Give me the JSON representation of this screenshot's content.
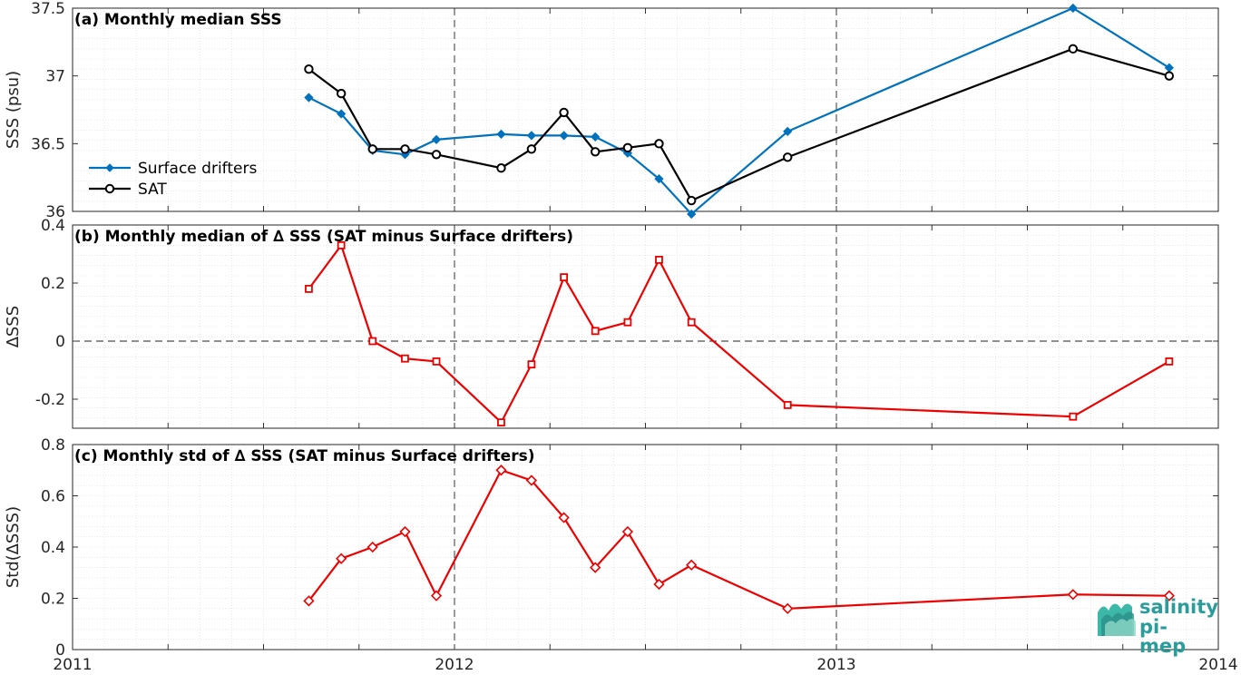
{
  "chart_data": [
    {
      "type": "line",
      "title": "(a) Monthly median SSS",
      "ylabel": "SSS (psu)",
      "ylim": [
        36.0,
        37.5
      ],
      "yticks": [
        36,
        36.5,
        37,
        37.5
      ],
      "ytick_labels": [
        "36",
        "36.5",
        "37",
        "37.5"
      ],
      "legend_position": "middle-left",
      "grid": true,
      "x_dates": [
        "2011-08",
        "2011-09",
        "2011-10",
        "2011-11",
        "2011-12",
        "2012-02",
        "2012-03",
        "2012-04",
        "2012-05",
        "2012-06",
        "2012-07",
        "2012-08",
        "2012-11",
        "2013-08",
        "2013-11"
      ],
      "series": [
        {
          "name": "Surface drifters",
          "color": "#0072bd",
          "marker": "diamond",
          "values": [
            36.84,
            36.72,
            36.45,
            36.42,
            36.53,
            36.57,
            36.56,
            36.56,
            36.55,
            36.43,
            36.24,
            35.98,
            36.59,
            37.5,
            37.06
          ]
        },
        {
          "name": "SAT",
          "color": "#000000",
          "marker": "circle",
          "values": [
            37.05,
            36.87,
            36.46,
            36.46,
            36.42,
            36.32,
            36.46,
            36.73,
            36.44,
            36.47,
            36.5,
            36.08,
            36.4,
            37.2,
            37.0
          ]
        }
      ]
    },
    {
      "type": "line",
      "title": "(b) Monthly median of ∆ SSS (SAT minus Surface drifters)",
      "ylabel": "∆SSS",
      "ylim": [
        -0.3,
        0.4
      ],
      "yticks": [
        -0.2,
        0,
        0.2,
        0.4
      ],
      "ytick_labels": [
        "-0.2",
        "0",
        "0.2",
        "0.4"
      ],
      "zero_line": true,
      "grid": true,
      "x_dates": [
        "2011-08",
        "2011-09",
        "2011-10",
        "2011-11",
        "2011-12",
        "2012-02",
        "2012-03",
        "2012-04",
        "2012-05",
        "2012-06",
        "2012-07",
        "2012-08",
        "2012-11",
        "2013-08",
        "2013-11"
      ],
      "series": [
        {
          "color": "#ee0000",
          "marker": "square",
          "values": [
            0.18,
            0.33,
            0.0,
            -0.06,
            -0.07,
            -0.28,
            -0.08,
            0.22,
            0.035,
            0.065,
            0.28,
            0.065,
            -0.22,
            -0.26,
            -0.07
          ]
        }
      ]
    },
    {
      "type": "line",
      "title": "(c) Monthly std of ∆ SSS (SAT minus Surface drifters)",
      "ylabel": "Std(∆SSS)",
      "ylim": [
        0,
        0.8
      ],
      "yticks": [
        0,
        0.2,
        0.4,
        0.6,
        0.8
      ],
      "ytick_labels": [
        "0",
        "0.2",
        "0.4",
        "0.6",
        "0.8"
      ],
      "grid": true,
      "xticks": [
        "2011",
        "2012",
        "2013",
        "2014"
      ],
      "x_dates": [
        "2011-08",
        "2011-09",
        "2011-10",
        "2011-11",
        "2011-12",
        "2012-02",
        "2012-03",
        "2012-04",
        "2012-05",
        "2012-06",
        "2012-07",
        "2012-08",
        "2012-11",
        "2013-08",
        "2013-11"
      ],
      "series": [
        {
          "color": "#ee0000",
          "marker": "diamond",
          "values": [
            0.19,
            0.355,
            0.4,
            0.46,
            0.21,
            0.7,
            0.66,
            0.515,
            0.32,
            0.46,
            0.255,
            0.33,
            0.16,
            0.215,
            0.21
          ]
        }
      ]
    }
  ],
  "logo": {
    "line1": "salinity",
    "line2": "pi-mep"
  }
}
